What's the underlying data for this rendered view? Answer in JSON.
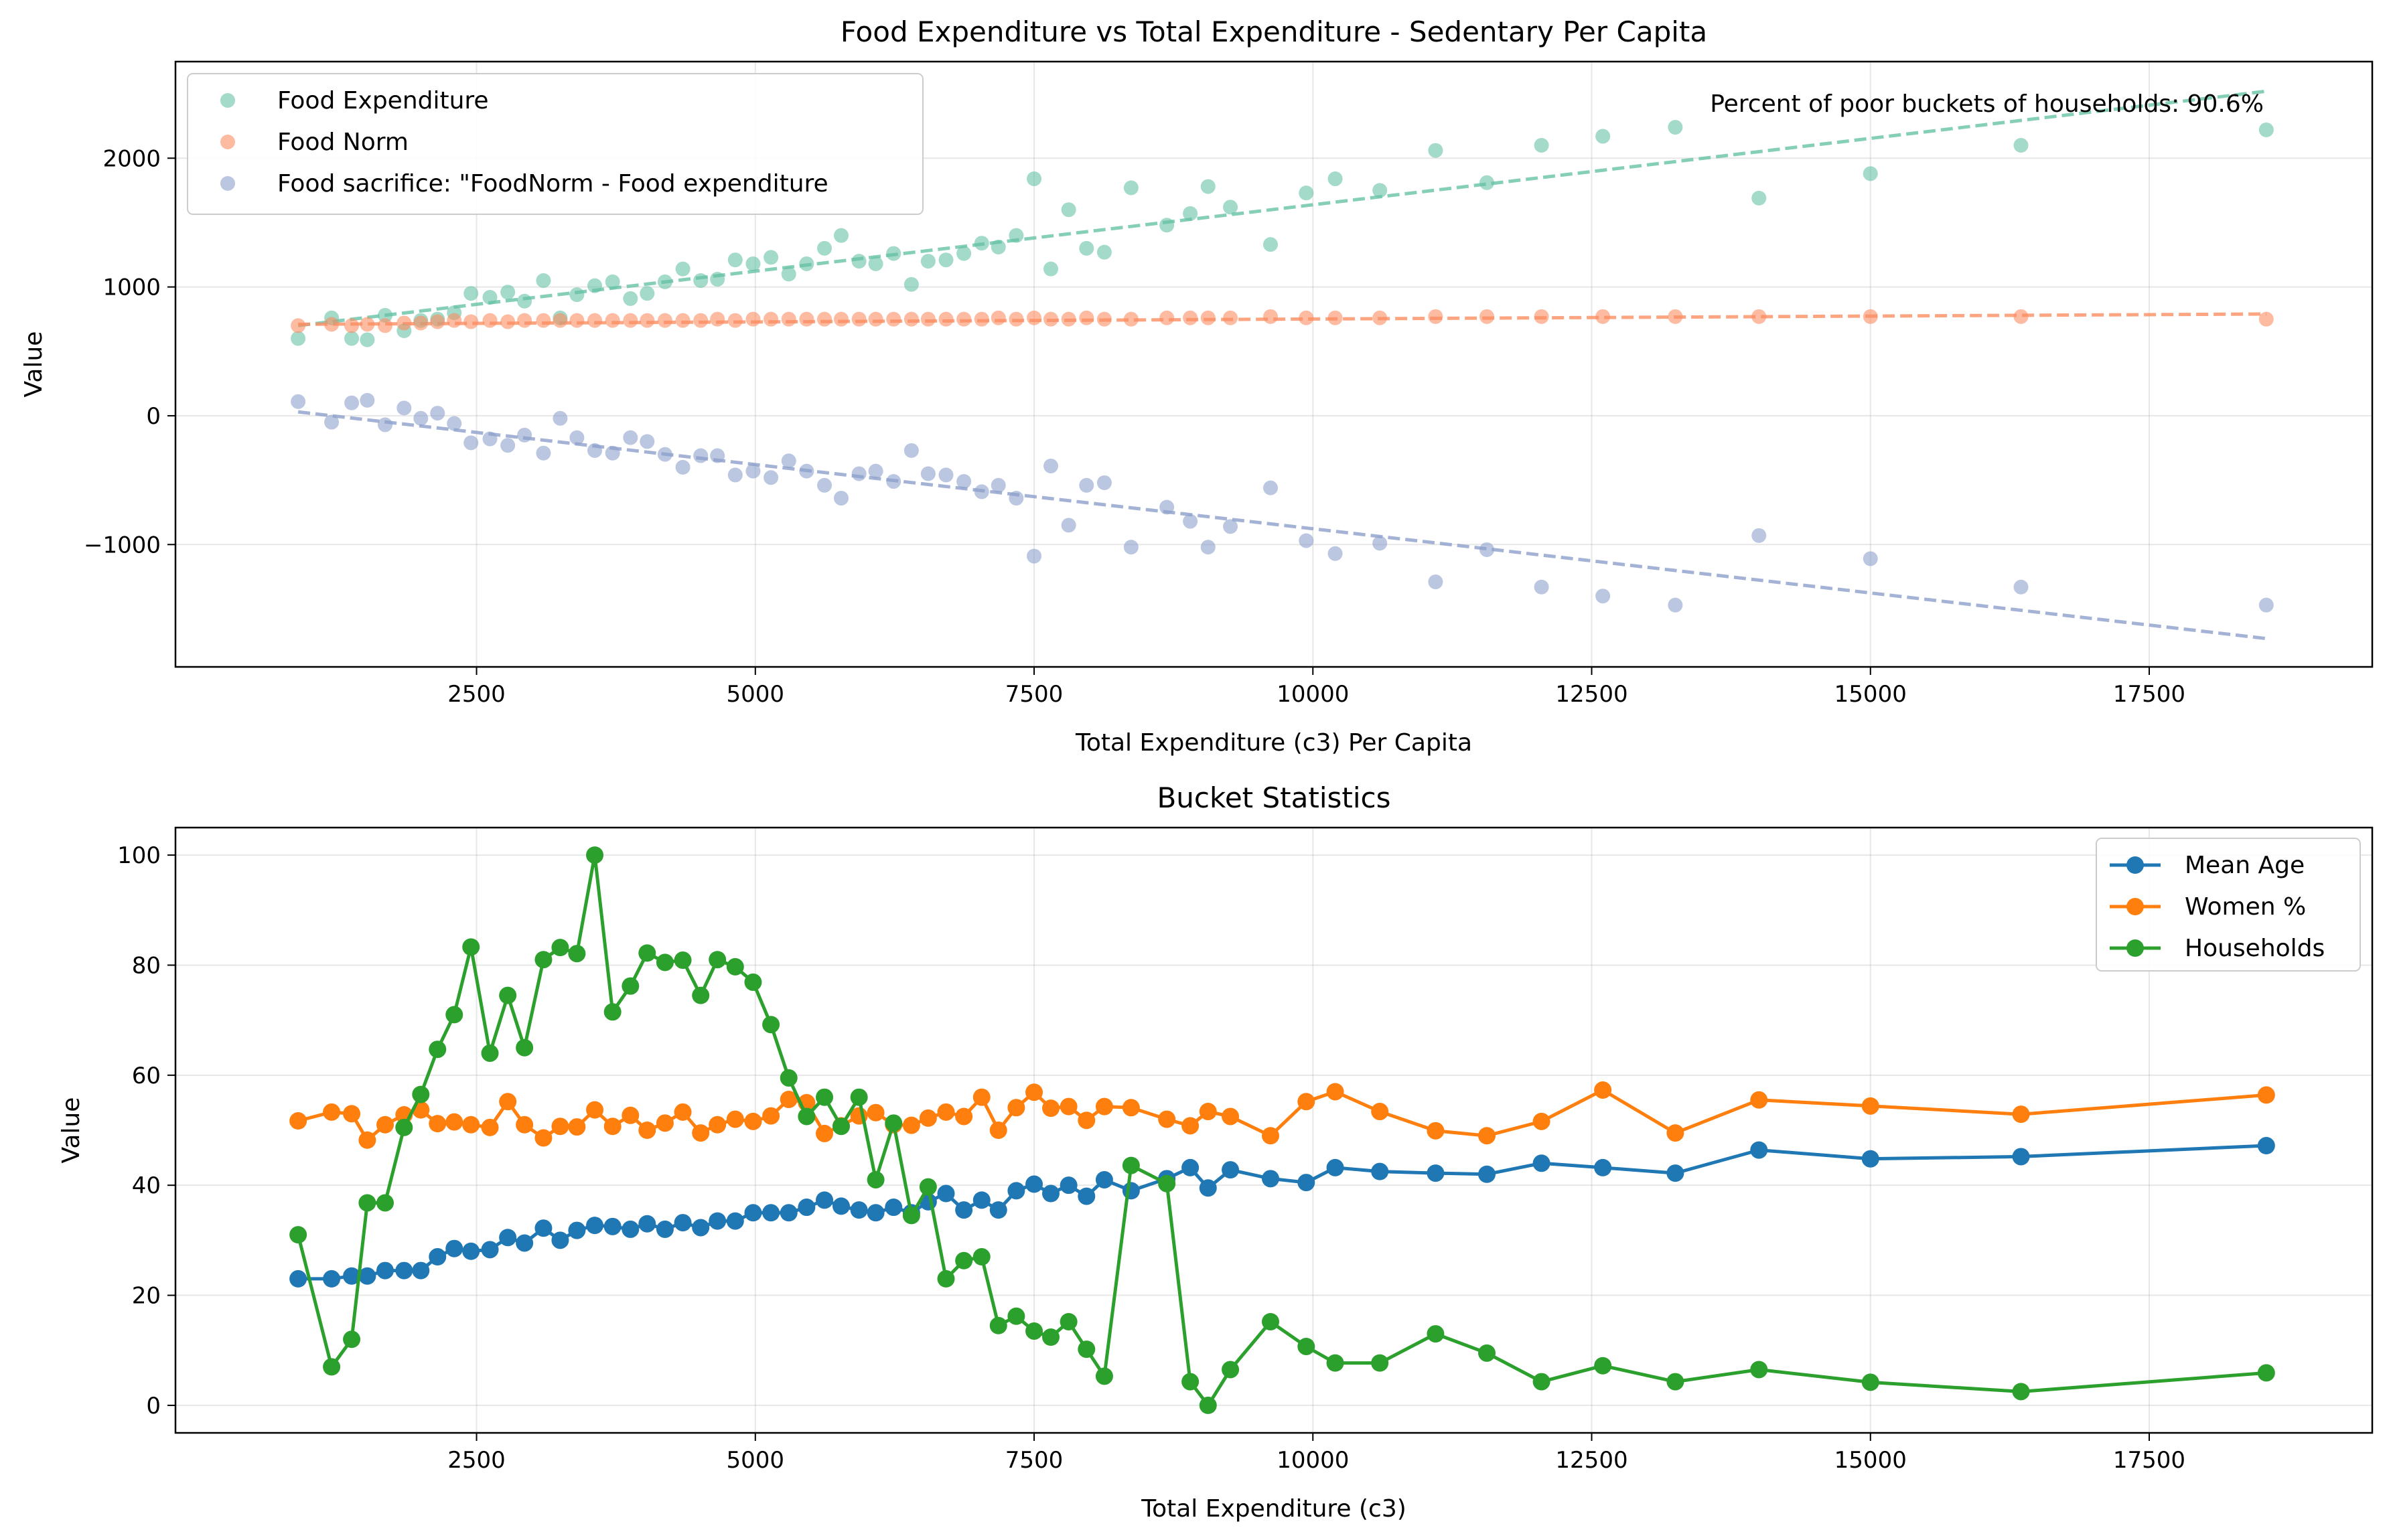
{
  "chart_data": [
    {
      "type": "scatter",
      "title": "Food Expenditure vs Total Expenditure - Sedentary Per Capita",
      "xlabel": "Total Expenditure (c3) Per Capita",
      "ylabel": "Value",
      "xlim": [
        -200,
        19500
      ],
      "ylim": [
        -1950,
        2750
      ],
      "xticks": [
        2500,
        5000,
        7500,
        10000,
        12500,
        15000,
        17500
      ],
      "yticks": [
        -1000,
        0,
        1000,
        2000
      ],
      "grid": true,
      "legend_position": "top-left",
      "annotation": "Percent of poor buckets of households: 90.6%",
      "x": [
        900,
        1200,
        1380,
        1520,
        1680,
        1850,
        2000,
        2150,
        2300,
        2450,
        2620,
        2780,
        2930,
        3100,
        3250,
        3400,
        3560,
        3720,
        3880,
        4030,
        4190,
        4350,
        4510,
        4660,
        4820,
        4980,
        5140,
        5300,
        5460,
        5620,
        5770,
        5930,
        6080,
        6240,
        6400,
        6550,
        6710,
        6870,
        7030,
        7180,
        7340,
        7500,
        7650,
        7810,
        7970,
        8130,
        8370,
        8690,
        8900,
        9060,
        9260,
        9620,
        9940,
        10200,
        10600,
        11100,
        11560,
        12050,
        12600,
        13250,
        14000,
        15000,
        16350,
        18550
      ],
      "series": [
        {
          "name": "Food Expenditure",
          "color": "#66c2a5",
          "values": [
            600,
            760,
            600,
            590,
            780,
            660,
            740,
            750,
            800,
            950,
            920,
            960,
            890,
            1050,
            760,
            940,
            1010,
            1040,
            910,
            950,
            1040,
            1140,
            1050,
            1060,
            1210,
            1180,
            1230,
            1100,
            1180,
            1300,
            1400,
            1200,
            1180,
            1260,
            1020,
            1200,
            1210,
            1260,
            1340,
            1310,
            1400,
            1840,
            1140,
            1600,
            1300,
            1270,
            1770,
            1480,
            1570,
            1780,
            1620,
            1330,
            1730,
            1840,
            1750,
            2060,
            1810,
            2100,
            2170,
            2240,
            1690,
            1880,
            2100,
            2220
          ],
          "trend": [
            700,
            2520
          ]
        },
        {
          "name": "Food Norm",
          "color": "#fc8d62",
          "values": [
            700,
            710,
            700,
            710,
            700,
            720,
            720,
            730,
            740,
            730,
            740,
            730,
            740,
            740,
            740,
            740,
            740,
            740,
            740,
            740,
            740,
            740,
            740,
            750,
            740,
            750,
            750,
            750,
            750,
            750,
            750,
            750,
            750,
            750,
            750,
            750,
            750,
            750,
            750,
            760,
            750,
            760,
            750,
            750,
            760,
            750,
            750,
            760,
            760,
            760,
            760,
            770,
            760,
            760,
            760,
            770,
            770,
            770,
            770,
            770,
            770,
            770,
            770,
            750
          ],
          "trend": [
            710,
            790
          ]
        },
        {
          "name": "Food sacrifice: \"FoodNorm - Food expenditure",
          "color": "#8da0cb",
          "values": [
            110,
            -50,
            100,
            120,
            -70,
            60,
            -20,
            20,
            -60,
            -210,
            -180,
            -230,
            -150,
            -290,
            -20,
            -170,
            -270,
            -290,
            -170,
            -200,
            -300,
            -400,
            -310,
            -310,
            -460,
            -430,
            -480,
            -350,
            -430,
            -540,
            -640,
            -450,
            -430,
            -510,
            -270,
            -450,
            -460,
            -510,
            -590,
            -540,
            -640,
            -1090,
            -390,
            -850,
            -540,
            -520,
            -1020,
            -710,
            -820,
            -1020,
            -860,
            -560,
            -970,
            -1070,
            -990,
            -1290,
            -1040,
            -1330,
            -1400,
            -1470,
            -930,
            -1110,
            -1330,
            -1470
          ],
          "trend": [
            30,
            -1730
          ]
        }
      ]
    },
    {
      "type": "line",
      "title": "Bucket Statistics",
      "xlabel": "Total Expenditure (c3)",
      "ylabel": "Value",
      "xlim": [
        -200,
        19500
      ],
      "ylim": [
        -5,
        105
      ],
      "xticks": [
        2500,
        5000,
        7500,
        10000,
        12500,
        15000,
        17500
      ],
      "yticks": [
        0,
        20,
        40,
        60,
        80,
        100
      ],
      "grid": true,
      "legend_position": "top-right",
      "x": [
        900,
        1200,
        1380,
        1520,
        1680,
        1850,
        2000,
        2150,
        2300,
        2450,
        2620,
        2780,
        2930,
        3100,
        3250,
        3400,
        3560,
        3720,
        3880,
        4030,
        4190,
        4350,
        4510,
        4660,
        4820,
        4980,
        5140,
        5300,
        5460,
        5620,
        5770,
        5930,
        6080,
        6240,
        6400,
        6550,
        6710,
        6870,
        7030,
        7180,
        7340,
        7500,
        7650,
        7810,
        7970,
        8130,
        8370,
        8690,
        8900,
        9060,
        9260,
        9620,
        9940,
        10200,
        10600,
        11100,
        11560,
        12050,
        12600,
        13250,
        14000,
        15000,
        16350,
        18550
      ],
      "series": [
        {
          "name": "Mean Age",
          "color": "#1f77b4",
          "values": [
            23,
            23,
            23.5,
            23.5,
            24.5,
            24.5,
            24.5,
            27,
            28.5,
            28,
            28.3,
            30.5,
            29.5,
            32.2,
            30,
            31.8,
            32.7,
            32.5,
            32,
            33,
            32,
            33.2,
            32.3,
            33.5,
            33.5,
            35,
            35,
            35,
            36,
            37.3,
            36.2,
            35.5,
            35,
            36,
            35,
            37,
            38.5,
            35.5,
            37.3,
            35.5,
            39,
            40.2,
            38.5,
            40,
            38,
            41,
            39,
            41.2,
            43.2,
            39.5,
            42.8,
            41.2,
            40.5,
            43.2,
            42.5,
            42.2,
            42,
            44,
            43.2,
            42.2,
            46.4,
            44.8,
            45.2,
            47.2
          ]
        },
        {
          "name": "Women %",
          "color": "#ff7f0e",
          "values": [
            51.7,
            53.3,
            53,
            48.2,
            51,
            52.8,
            53.7,
            51.2,
            51.5,
            51,
            50.5,
            55.2,
            51,
            48.6,
            50.7,
            50.6,
            53.7,
            50.7,
            52.7,
            50,
            51.3,
            53.3,
            49.5,
            51,
            52,
            51.6,
            52.6,
            55.6,
            55,
            49.4,
            50.8,
            52.6,
            53.2,
            51,
            50.9,
            52.2,
            53.3,
            52.5,
            56,
            50,
            54.1,
            56.9,
            54,
            54.3,
            51.8,
            54.3,
            54.1,
            52,
            50.8,
            53.4,
            52.5,
            49,
            55.2,
            57,
            53.4,
            49.9,
            49,
            51.6,
            57.3,
            49.5,
            55.5,
            54.4,
            52.9,
            56.4
          ]
        },
        {
          "name": "Households",
          "color": "#2ca02c",
          "values": [
            31,
            7,
            12,
            36.8,
            36.8,
            50.5,
            56.5,
            64.7,
            71,
            83.3,
            64,
            74.5,
            65,
            81,
            83.2,
            82.1,
            100,
            71.5,
            76.2,
            82.2,
            80.5,
            80.9,
            74.5,
            81,
            79.7,
            76.9,
            69.2,
            59.5,
            52.5,
            56,
            50.7,
            56,
            41,
            51.3,
            34.5,
            39.7,
            23,
            26.3,
            27,
            14.5,
            16.2,
            13.5,
            12.4,
            15.2,
            10.2,
            5.3,
            43.6,
            40.3,
            4.3,
            0,
            6.5,
            15.2,
            10.7,
            7.7,
            7.7,
            13,
            9.5,
            4.3,
            7.2,
            4.3,
            6.5,
            4.2,
            2.5,
            5.9
          ]
        }
      ]
    }
  ]
}
